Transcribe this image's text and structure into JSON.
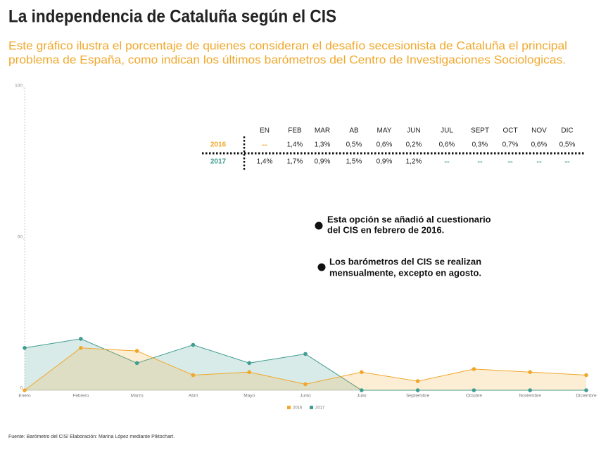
{
  "header": {
    "title": "La independencia de Cataluña según el CIS",
    "subtitle": [
      "Este gráfico ilustra el porcentaje de quienes consideran el desafío secesionista de Cataluña el principal",
      "problema de España, como indican los últimos barómetros del Centro de Investigaciones Sociologicas."
    ]
  },
  "table": {
    "columns": [
      "EN",
      "FEB",
      "MAR",
      "AB",
      "MAY",
      "JUN",
      "JUL",
      "SEPT",
      "OCT",
      "NOV",
      "DIC"
    ],
    "rows": [
      {
        "label": "2016",
        "color": "#f0a82c",
        "cells": [
          "--",
          "1,4%",
          "1,3%",
          "0,5%",
          "0,6%",
          "0,2%",
          "0,6%",
          "0,3%",
          "0,7%",
          "0,6%",
          "0,5%"
        ]
      },
      {
        "label": "2017",
        "color": "#3f9d91",
        "cells": [
          "1,4%",
          "1,7%",
          "0,9%",
          "1,5%",
          "0,9%",
          "1,2%",
          "--",
          "--",
          "--",
          "--",
          "--"
        ]
      }
    ]
  },
  "notes": [
    [
      "Esta opción se añadió al cuestionario",
      "del CIS en febrero de 2016."
    ],
    [
      "Los barómetros del CIS se realizan",
      "mensualmente, excepto en agosto."
    ]
  ],
  "source": "Fuente: Barómetro del CIS/ Elaboración: Marina López mediante Piktochart.",
  "chart_data": {
    "type": "area",
    "categories": [
      "Enero",
      "Febrero",
      "Marzo",
      "Abril",
      "Mayo",
      "Junio",
      "Julio",
      "Septiembre",
      "Octubre",
      "Noviembre",
      "Diciembre"
    ],
    "series": [
      {
        "name": "2016",
        "color": "#f0a82c",
        "values": [
          0,
          14,
          13,
          5,
          6,
          2,
          6,
          3,
          7,
          6,
          5
        ]
      },
      {
        "name": "2017",
        "color": "#3f9d91",
        "values": [
          14,
          17,
          9,
          15,
          9,
          12,
          0,
          0,
          0,
          0,
          0
        ]
      }
    ],
    "ylim": [
      0,
      100
    ],
    "yticks": [
      0,
      50,
      100
    ]
  }
}
